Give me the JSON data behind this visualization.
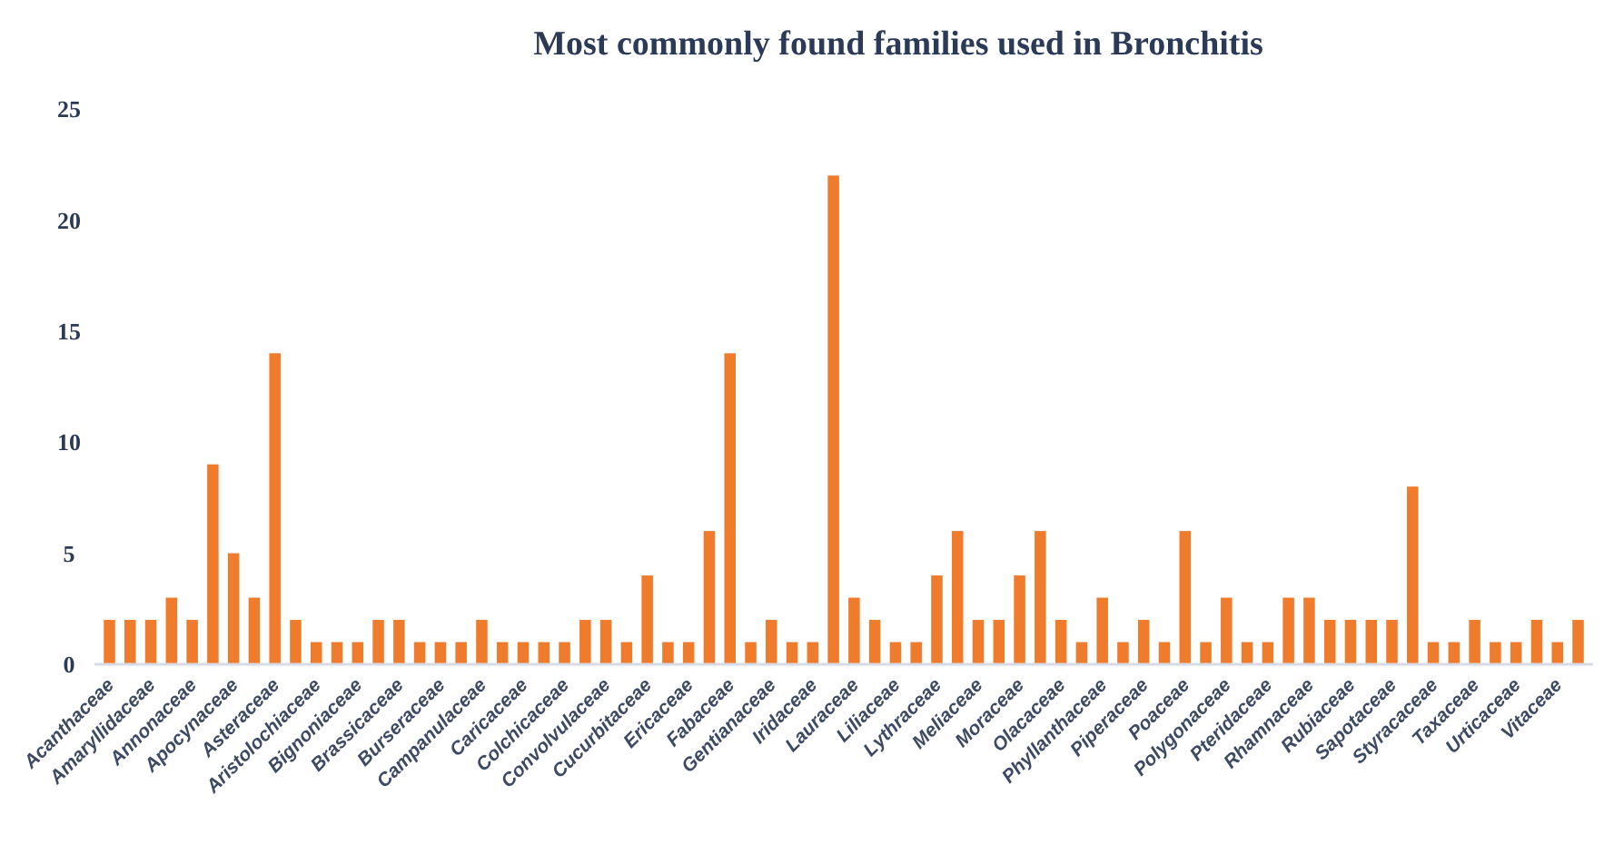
{
  "chart_data": {
    "type": "bar",
    "title": "Most commonly found families used in Bronchitis",
    "categories": [
      "Acanthaceae",
      null,
      "Amaryllidaceae",
      null,
      "Annonaceae",
      null,
      "Apocynaceae",
      null,
      "Asteraceae",
      null,
      "Aristolochiaceae",
      null,
      "Bignoniaceae",
      null,
      "Brassicaceae",
      null,
      "Burseraceae",
      null,
      "Campanulaceae",
      null,
      "Caricaceae",
      null,
      "Colchicaceae",
      null,
      "Convolvulaceae",
      null,
      "Cucurbitaceae",
      null,
      "Ericaceae",
      null,
      "Fabaceae",
      null,
      "Gentianaceae",
      null,
      "Iridaceae",
      null,
      "Lauraceae",
      null,
      "Liliaceae",
      null,
      "Lythraceae",
      null,
      "Meliaceae",
      null,
      "Moraceae",
      null,
      "Olacaceae",
      null,
      "Phyllanthaceae",
      null,
      "Piperaceae",
      null,
      "Poaceae",
      null,
      "Polygonaceae",
      null,
      "Pteridaceae",
      null,
      "Rhamnaceae",
      null,
      "Rubiaceae",
      null,
      "Sapotaceae",
      null,
      "Styracaceae",
      null,
      "Taxaceae",
      null,
      "Urticaceae",
      null,
      "Vitaceae",
      null
    ],
    "values": [
      2,
      2,
      2,
      3,
      2,
      9,
      5,
      3,
      14,
      2,
      1,
      1,
      1,
      2,
      2,
      1,
      1,
      1,
      2,
      1,
      1,
      1,
      1,
      2,
      2,
      1,
      4,
      1,
      1,
      6,
      14,
      1,
      2,
      1,
      1,
      22,
      3,
      2,
      1,
      1,
      4,
      6,
      2,
      2,
      4,
      6,
      2,
      1,
      3,
      1,
      2,
      1,
      6,
      1,
      3,
      1,
      1,
      3,
      3,
      2,
      2,
      2,
      2,
      8,
      1,
      1,
      2,
      1,
      1,
      2,
      1,
      2
    ],
    "color": "#ef7b2d",
    "ylim": [
      0,
      25
    ],
    "yticks": [
      0,
      5,
      10,
      15,
      20,
      25
    ],
    "grid": false
  }
}
